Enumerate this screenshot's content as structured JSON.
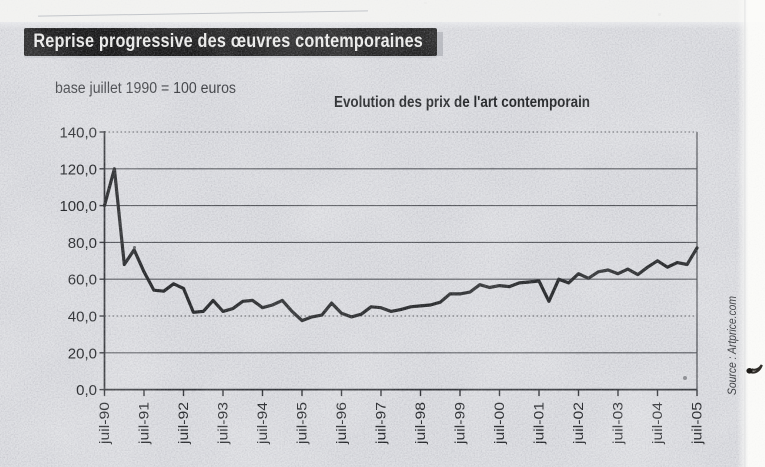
{
  "header": {
    "title": "Reprise progressive des œuvres contemporaines"
  },
  "chart_data": {
    "type": "line",
    "title": "Evolution des prix de l'art contemporain",
    "subtitle": "base juillet 1990 = 100 euros",
    "source": "Source : Artprice.com",
    "x_tick_labels": [
      "juil-90",
      "juil-91",
      "juil-92",
      "juil-93",
      "juil-94",
      "juil-95",
      "juil-96",
      "juil-97",
      "juil-98",
      "juil-99",
      "juil-00",
      "juil-01",
      "juil-02",
      "juil-03",
      "juil-04",
      "juil-05"
    ],
    "y_tick_labels": [
      "140,0",
      "120,0",
      "100,0",
      "80,0",
      "60,0",
      "40,0",
      "20,0",
      "0,0"
    ],
    "ylim": [
      0,
      140
    ],
    "ytick_step": 20,
    "dotted_levels": [
      140,
      40
    ],
    "grid": "horizontal",
    "legend_position": "none",
    "points_per_quarter": true,
    "x_start": "juil-90",
    "x_end": "juil-05",
    "values": [
      100,
      120,
      68,
      76,
      64,
      54,
      53.5,
      57.5,
      55,
      42,
      42.5,
      48.5,
      42.5,
      44,
      48,
      48.5,
      44.5,
      46,
      48.5,
      42.5,
      37.5,
      39.5,
      40.5,
      47,
      41.5,
      39.5,
      41,
      45,
      44.5,
      42.5,
      43.5,
      45,
      45.5,
      46,
      47.5,
      52,
      52,
      53,
      57,
      55.5,
      56.5,
      56,
      58,
      58.5,
      59,
      48,
      60,
      58,
      63,
      60.5,
      64,
      65,
      63,
      65.5,
      62.5,
      66.5,
      70,
      66.5,
      69,
      68,
      77
    ],
    "line_color": "#26282a"
  }
}
